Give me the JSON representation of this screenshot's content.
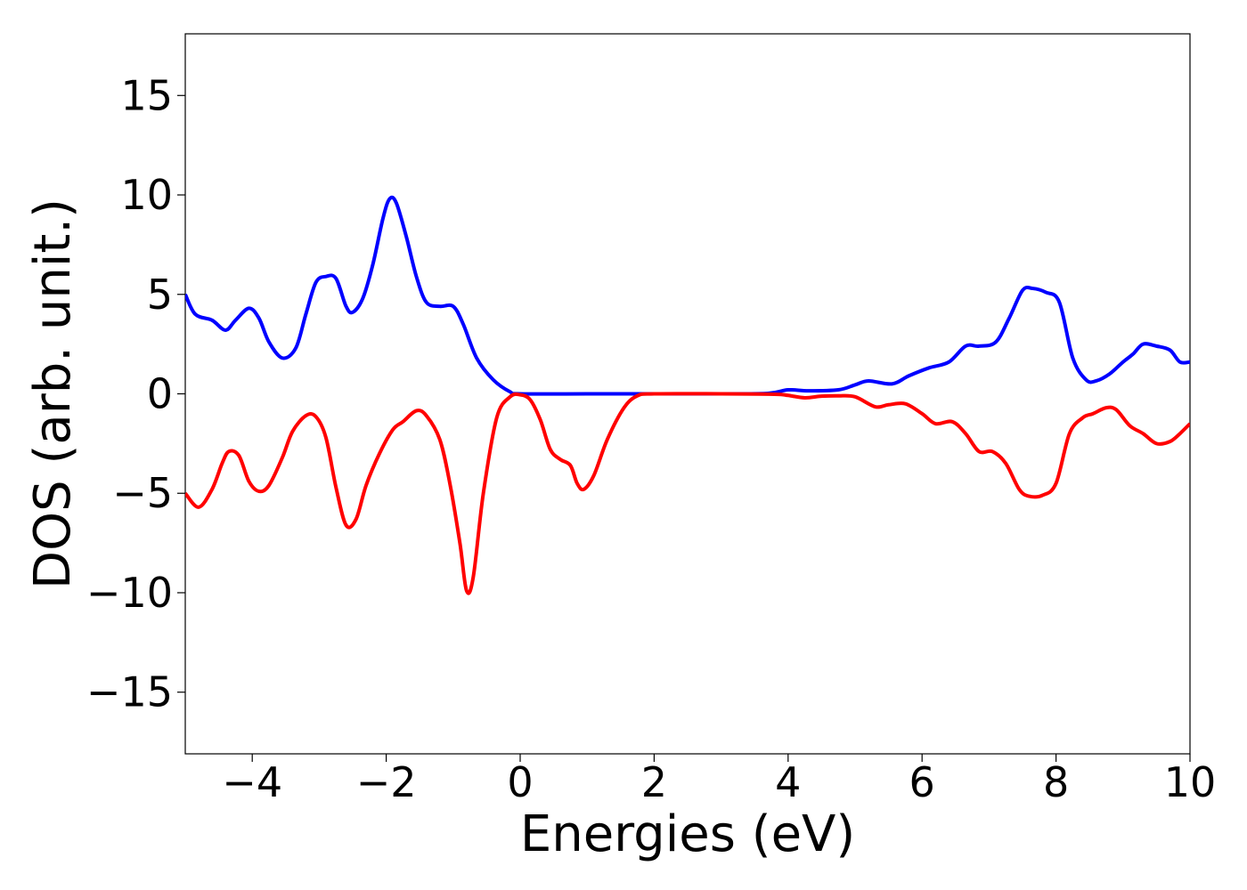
{
  "chart_data": {
    "type": "line",
    "xlabel": "Energies (eV)",
    "ylabel": "DOS (arb. unit.)",
    "xlim": [
      -5,
      10
    ],
    "ylim": [
      -18.1,
      18.1
    ],
    "xticks": [
      -4,
      -2,
      0,
      2,
      4,
      6,
      8,
      10
    ],
    "xtick_labels": [
      "−4",
      "−2",
      "0",
      "2",
      "4",
      "6",
      "8",
      "10"
    ],
    "yticks": [
      -15,
      -10,
      -5,
      0,
      5,
      10,
      15
    ],
    "ytick_labels": [
      "−15",
      "−10",
      "−5",
      "0",
      "5",
      "10",
      "15"
    ],
    "grid": false,
    "legend": "none",
    "series": [
      {
        "color": "#0000ff",
        "points": [
          [
            -5.0,
            5.0
          ],
          [
            -4.85,
            4.0
          ],
          [
            -4.6,
            3.7
          ],
          [
            -4.4,
            3.2
          ],
          [
            -4.25,
            3.7
          ],
          [
            -4.05,
            4.3
          ],
          [
            -3.9,
            3.8
          ],
          [
            -3.75,
            2.6
          ],
          [
            -3.55,
            1.8
          ],
          [
            -3.35,
            2.3
          ],
          [
            -3.2,
            4.0
          ],
          [
            -3.05,
            5.6
          ],
          [
            -2.9,
            5.9
          ],
          [
            -2.75,
            5.8
          ],
          [
            -2.6,
            4.4
          ],
          [
            -2.5,
            4.1
          ],
          [
            -2.35,
            4.8
          ],
          [
            -2.2,
            6.5
          ],
          [
            -2.05,
            8.8
          ],
          [
            -1.95,
            9.8
          ],
          [
            -1.85,
            9.6
          ],
          [
            -1.7,
            7.9
          ],
          [
            -1.55,
            5.9
          ],
          [
            -1.4,
            4.6
          ],
          [
            -1.2,
            4.4
          ],
          [
            -1.0,
            4.4
          ],
          [
            -0.85,
            3.5
          ],
          [
            -0.65,
            1.8
          ],
          [
            -0.4,
            0.7
          ],
          [
            -0.15,
            0.1
          ],
          [
            0.0,
            0.0
          ],
          [
            1.0,
            0.0
          ],
          [
            2.0,
            0.0
          ],
          [
            3.0,
            0.0
          ],
          [
            3.7,
            0.02
          ],
          [
            4.0,
            0.2
          ],
          [
            4.3,
            0.15
          ],
          [
            4.75,
            0.2
          ],
          [
            5.0,
            0.45
          ],
          [
            5.2,
            0.65
          ],
          [
            5.55,
            0.5
          ],
          [
            5.8,
            0.9
          ],
          [
            6.1,
            1.3
          ],
          [
            6.4,
            1.6
          ],
          [
            6.65,
            2.4
          ],
          [
            6.85,
            2.4
          ],
          [
            7.1,
            2.6
          ],
          [
            7.3,
            3.8
          ],
          [
            7.5,
            5.2
          ],
          [
            7.65,
            5.3
          ],
          [
            7.85,
            5.1
          ],
          [
            8.05,
            4.6
          ],
          [
            8.25,
            1.8
          ],
          [
            8.45,
            0.7
          ],
          [
            8.6,
            0.65
          ],
          [
            8.8,
            1.0
          ],
          [
            9.0,
            1.6
          ],
          [
            9.15,
            2.0
          ],
          [
            9.3,
            2.5
          ],
          [
            9.5,
            2.4
          ],
          [
            9.7,
            2.2
          ],
          [
            9.85,
            1.6
          ],
          [
            10.0,
            1.6
          ]
        ]
      },
      {
        "color": "#ff0000",
        "points": [
          [
            -5.0,
            -5.0
          ],
          [
            -4.8,
            -5.7
          ],
          [
            -4.6,
            -4.8
          ],
          [
            -4.45,
            -3.5
          ],
          [
            -4.35,
            -2.9
          ],
          [
            -4.2,
            -3.1
          ],
          [
            -4.05,
            -4.4
          ],
          [
            -3.9,
            -4.9
          ],
          [
            -3.75,
            -4.6
          ],
          [
            -3.55,
            -3.2
          ],
          [
            -3.4,
            -1.9
          ],
          [
            -3.2,
            -1.1
          ],
          [
            -3.05,
            -1.15
          ],
          [
            -2.9,
            -2.2
          ],
          [
            -2.75,
            -4.7
          ],
          [
            -2.6,
            -6.6
          ],
          [
            -2.45,
            -6.3
          ],
          [
            -2.3,
            -4.6
          ],
          [
            -2.1,
            -3.0
          ],
          [
            -1.9,
            -1.8
          ],
          [
            -1.75,
            -1.4
          ],
          [
            -1.55,
            -0.85
          ],
          [
            -1.4,
            -1.1
          ],
          [
            -1.2,
            -2.3
          ],
          [
            -1.05,
            -4.5
          ],
          [
            -0.9,
            -7.5
          ],
          [
            -0.8,
            -9.9
          ],
          [
            -0.7,
            -9.2
          ],
          [
            -0.55,
            -5.0
          ],
          [
            -0.35,
            -1.2
          ],
          [
            -0.15,
            -0.15
          ],
          [
            0.0,
            -0.05
          ],
          [
            0.15,
            -0.3
          ],
          [
            0.3,
            -1.3
          ],
          [
            0.45,
            -2.8
          ],
          [
            0.6,
            -3.3
          ],
          [
            0.75,
            -3.6
          ],
          [
            0.85,
            -4.5
          ],
          [
            0.95,
            -4.8
          ],
          [
            1.1,
            -4.1
          ],
          [
            1.3,
            -2.3
          ],
          [
            1.55,
            -0.7
          ],
          [
            1.75,
            -0.1
          ],
          [
            2.0,
            0.0
          ],
          [
            3.0,
            0.0
          ],
          [
            3.8,
            -0.02
          ],
          [
            4.0,
            -0.08
          ],
          [
            4.25,
            -0.2
          ],
          [
            4.5,
            -0.12
          ],
          [
            4.75,
            -0.1
          ],
          [
            5.0,
            -0.15
          ],
          [
            5.3,
            -0.65
          ],
          [
            5.5,
            -0.55
          ],
          [
            5.75,
            -0.5
          ],
          [
            6.0,
            -1.0
          ],
          [
            6.2,
            -1.5
          ],
          [
            6.45,
            -1.4
          ],
          [
            6.65,
            -2.0
          ],
          [
            6.85,
            -2.9
          ],
          [
            7.05,
            -2.9
          ],
          [
            7.25,
            -3.5
          ],
          [
            7.45,
            -4.8
          ],
          [
            7.6,
            -5.15
          ],
          [
            7.8,
            -5.1
          ],
          [
            8.0,
            -4.5
          ],
          [
            8.2,
            -2.0
          ],
          [
            8.4,
            -1.2
          ],
          [
            8.55,
            -1.0
          ],
          [
            8.75,
            -0.7
          ],
          [
            8.9,
            -0.8
          ],
          [
            9.1,
            -1.6
          ],
          [
            9.3,
            -2.0
          ],
          [
            9.5,
            -2.5
          ],
          [
            9.7,
            -2.4
          ],
          [
            9.85,
            -2.0
          ],
          [
            10.0,
            -1.5
          ]
        ]
      }
    ]
  }
}
